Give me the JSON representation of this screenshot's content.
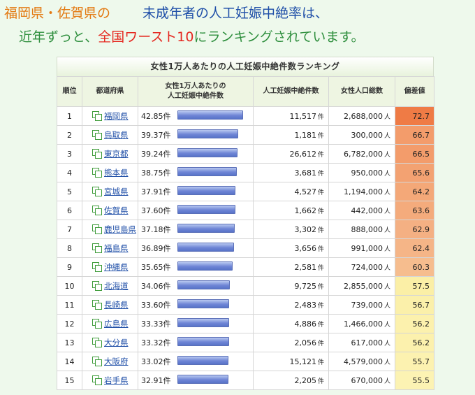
{
  "headline": {
    "line1_part1": "福岡県・佐賀県",
    "line1_part2": "の",
    "line1_part3": "未成年者の人工妊娠中絶率は、",
    "line2_part1": "近年ずっと、",
    "line2_part2": "全国ワースト10",
    "line2_part3": "にランキングされています。"
  },
  "table": {
    "title": "女性1万人あたりの人工妊娠中絶件数ランキング",
    "headers": {
      "rank": "順位",
      "prefecture": "都道府県",
      "rate_line1": "女性1万人あたりの",
      "rate_line2": "人工妊娠中絶件数",
      "abortions": "人工妊娠中絶件数",
      "population": "女性人口総数",
      "deviation": "偏差値"
    },
    "unit_count": "件",
    "unit_person": "人",
    "rate_max": 42.85,
    "rows": [
      {
        "rank": "1",
        "pref": "福岡県",
        "rate": "42.85件",
        "rate_num": 42.85,
        "count": "11,517",
        "pop": "2,688,000",
        "dev": "72.7",
        "dev_color": "#ef7b45"
      },
      {
        "rank": "2",
        "pref": "鳥取県",
        "rate": "39.37件",
        "rate_num": 39.37,
        "count": "1,181",
        "pop": "300,000",
        "dev": "66.7",
        "dev_color": "#f39c6b"
      },
      {
        "rank": "3",
        "pref": "東京都",
        "rate": "39.24件",
        "rate_num": 39.24,
        "count": "26,612",
        "pop": "6,782,000",
        "dev": "66.5",
        "dev_color": "#f39c6b"
      },
      {
        "rank": "4",
        "pref": "熊本県",
        "rate": "38.75件",
        "rate_num": 38.75,
        "count": "3,681",
        "pop": "950,000",
        "dev": "65.6",
        "dev_color": "#f3a272"
      },
      {
        "rank": "5",
        "pref": "宮城県",
        "rate": "37.91件",
        "rate_num": 37.91,
        "count": "4,527",
        "pop": "1,194,000",
        "dev": "64.2",
        "dev_color": "#f4a878"
      },
      {
        "rank": "6",
        "pref": "佐賀県",
        "rate": "37.60件",
        "rate_num": 37.6,
        "count": "1,662",
        "pop": "442,000",
        "dev": "63.6",
        "dev_color": "#f4ab7c"
      },
      {
        "rank": "7",
        "pref": "鹿児島県",
        "rate": "37.18件",
        "rate_num": 37.18,
        "count": "3,302",
        "pop": "888,000",
        "dev": "62.9",
        "dev_color": "#f4b083"
      },
      {
        "rank": "8",
        "pref": "福島県",
        "rate": "36.89件",
        "rate_num": 36.89,
        "count": "3,656",
        "pop": "991,000",
        "dev": "62.4",
        "dev_color": "#f5b587"
      },
      {
        "rank": "9",
        "pref": "沖縄県",
        "rate": "35.65件",
        "rate_num": 35.65,
        "count": "2,581",
        "pop": "724,000",
        "dev": "60.3",
        "dev_color": "#f6bd8e"
      },
      {
        "rank": "10",
        "pref": "北海道",
        "rate": "34.06件",
        "rate_num": 34.06,
        "count": "9,725",
        "pop": "2,855,000",
        "dev": "57.5",
        "dev_color": "#fbefa6"
      },
      {
        "rank": "11",
        "pref": "長崎県",
        "rate": "33.60件",
        "rate_num": 33.6,
        "count": "2,483",
        "pop": "739,000",
        "dev": "56.7",
        "dev_color": "#fbf0aa"
      },
      {
        "rank": "12",
        "pref": "広島県",
        "rate": "33.33件",
        "rate_num": 33.33,
        "count": "4,886",
        "pop": "1,466,000",
        "dev": "56.2",
        "dev_color": "#fcf1ad"
      },
      {
        "rank": "13",
        "pref": "大分県",
        "rate": "33.32件",
        "rate_num": 33.32,
        "count": "2,056",
        "pop": "617,000",
        "dev": "56.2",
        "dev_color": "#fcf1ad"
      },
      {
        "rank": "14",
        "pref": "大阪府",
        "rate": "33.02件",
        "rate_num": 33.02,
        "count": "15,121",
        "pop": "4,579,000",
        "dev": "55.7",
        "dev_color": "#fcf2b0"
      },
      {
        "rank": "15",
        "pref": "岩手県",
        "rate": "32.91件",
        "rate_num": 32.91,
        "count": "2,205",
        "pop": "670,000",
        "dev": "55.5",
        "dev_color": "#fcf3b3"
      }
    ]
  }
}
